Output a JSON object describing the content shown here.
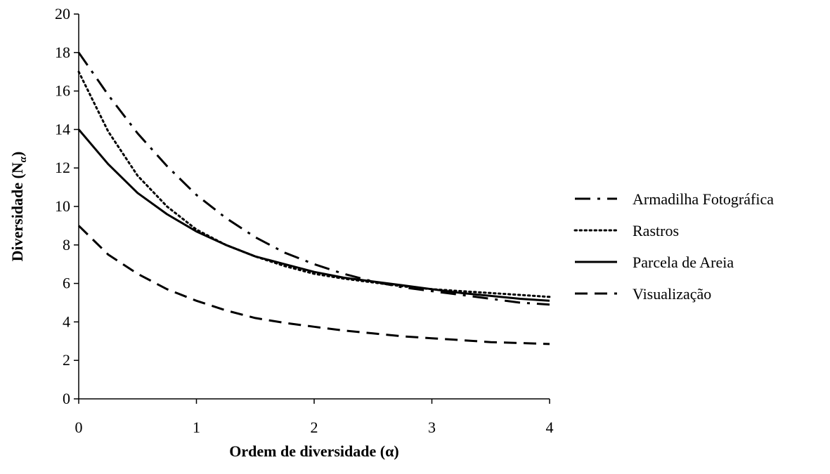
{
  "chart_data": {
    "type": "line",
    "xlabel": "Ordem de diversidade (α)",
    "ylabel_main": "Diversidade (N",
    "ylabel_sub": "α",
    "ylabel_close": ")",
    "xlim": [
      0,
      4
    ],
    "ylim": [
      0,
      20
    ],
    "x_ticks": [
      "0",
      "1",
      "2",
      "3",
      "4"
    ],
    "y_ticks": [
      "0",
      "2",
      "4",
      "6",
      "8",
      "10",
      "12",
      "14",
      "16",
      "18",
      "20"
    ],
    "grid": false,
    "legend_position": "right",
    "x": [
      0,
      0.25,
      0.5,
      0.75,
      1,
      1.25,
      1.5,
      1.75,
      2,
      2.25,
      2.5,
      2.75,
      3,
      3.25,
      3.5,
      3.75,
      4
    ],
    "series": [
      {
        "name": "Armadilha Fotográfica",
        "dash": "dashdot",
        "values": [
          18.0,
          15.8,
          13.8,
          12.1,
          10.6,
          9.4,
          8.4,
          7.6,
          7.0,
          6.5,
          6.1,
          5.8,
          5.6,
          5.4,
          5.2,
          5.0,
          4.9
        ]
      },
      {
        "name": "Rastros",
        "dash": "dotted",
        "values": [
          17.0,
          13.9,
          11.6,
          10.0,
          8.8,
          8.0,
          7.4,
          6.9,
          6.5,
          6.25,
          6.05,
          5.85,
          5.7,
          5.6,
          5.5,
          5.4,
          5.3
        ]
      },
      {
        "name": "Parcela de Areia",
        "dash": "solid",
        "values": [
          14.0,
          12.2,
          10.7,
          9.6,
          8.7,
          8.0,
          7.4,
          7.0,
          6.6,
          6.3,
          6.1,
          5.9,
          5.7,
          5.5,
          5.35,
          5.2,
          5.1
        ]
      },
      {
        "name": "Visualização",
        "dash": "dashed",
        "values": [
          9.0,
          7.5,
          6.5,
          5.7,
          5.1,
          4.6,
          4.2,
          3.95,
          3.75,
          3.55,
          3.4,
          3.25,
          3.15,
          3.05,
          2.95,
          2.9,
          2.85
        ]
      }
    ]
  }
}
